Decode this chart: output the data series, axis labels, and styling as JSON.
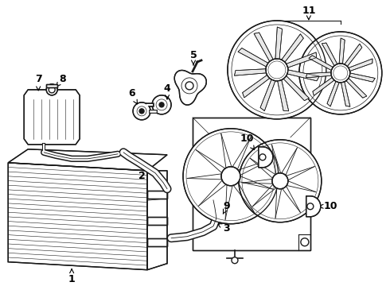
{
  "bg_color": "#ffffff",
  "line_color": "#1a1a1a",
  "lw": 1.0,
  "font_size": 9
}
